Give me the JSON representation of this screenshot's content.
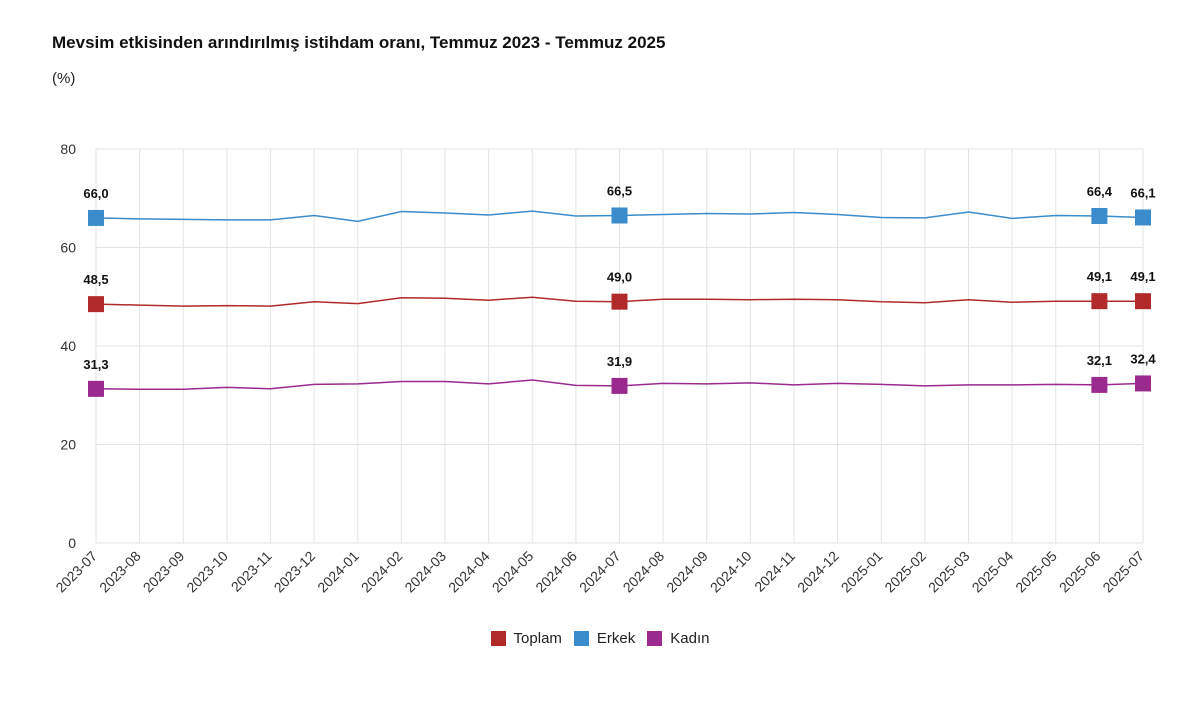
{
  "chart_data": {
    "type": "line",
    "title": "Mevsim etkisinden arındırılmış istihdam oranı, Temmuz 2023 - Temmuz 2025",
    "subtitle": "(%)",
    "xlabel": "",
    "ylabel": "",
    "ylim": [
      0,
      80
    ],
    "yticks": [
      "0",
      "20",
      "40",
      "60",
      "80"
    ],
    "grid": true,
    "legend_position": "bottom",
    "categories": [
      "2023-07",
      "2023-08",
      "2023-09",
      "2023-10",
      "2023-11",
      "2023-12",
      "2024-01",
      "2024-02",
      "2024-03",
      "2024-04",
      "2024-05",
      "2024-06",
      "2024-07",
      "2024-08",
      "2024-09",
      "2024-10",
      "2024-11",
      "2024-12",
      "2025-01",
      "2025-02",
      "2025-03",
      "2025-04",
      "2025-05",
      "2025-06",
      "2025-07"
    ],
    "series": [
      {
        "name": "Erkek",
        "color": "#3a8ccc",
        "values": [
          66.0,
          65.8,
          65.7,
          65.6,
          65.6,
          66.5,
          65.3,
          67.3,
          67.0,
          66.6,
          67.4,
          66.4,
          66.5,
          66.7,
          66.9,
          66.8,
          67.1,
          66.7,
          66.1,
          66.0,
          67.2,
          65.9,
          66.5,
          66.4,
          66.1
        ],
        "labels": {
          "0": "66,0",
          "12": "66,5",
          "23": "66,4",
          "24": "66,1"
        }
      },
      {
        "name": "Toplam",
        "color": "#b02a2a",
        "values": [
          48.5,
          48.3,
          48.1,
          48.2,
          48.1,
          49.0,
          48.6,
          49.8,
          49.7,
          49.3,
          49.9,
          49.1,
          49.0,
          49.5,
          49.5,
          49.4,
          49.5,
          49.4,
          49.0,
          48.8,
          49.4,
          48.9,
          49.1,
          49.1,
          49.1
        ],
        "labels": {
          "0": "48,5",
          "12": "49,0",
          "23": "49,1",
          "24": "49,1"
        }
      },
      {
        "name": "Kadın",
        "color": "#9a2a8e",
        "values": [
          31.3,
          31.2,
          31.2,
          31.6,
          31.3,
          32.2,
          32.3,
          32.8,
          32.8,
          32.3,
          33.1,
          32.0,
          31.9,
          32.4,
          32.3,
          32.5,
          32.1,
          32.4,
          32.2,
          31.9,
          32.1,
          32.1,
          32.2,
          32.1,
          32.4
        ],
        "labels": {
          "0": "31,3",
          "12": "31,9",
          "23": "32,1",
          "24": "32,4"
        }
      }
    ],
    "legend": [
      {
        "name": "Toplam",
        "color": "#b02a2a"
      },
      {
        "name": "Erkek",
        "color": "#3a8ccc"
      },
      {
        "name": "Kadın",
        "color": "#9a2a8e"
      }
    ]
  }
}
